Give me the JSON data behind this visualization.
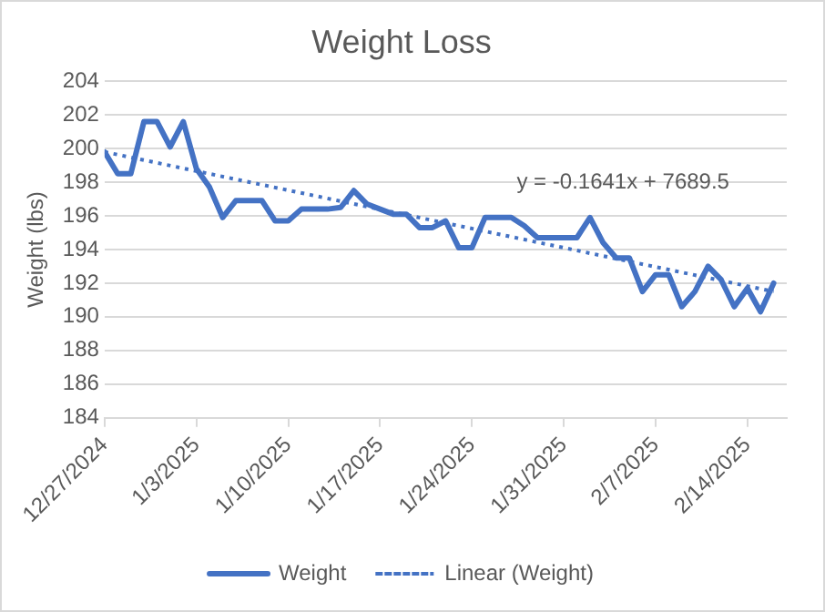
{
  "chart_data": {
    "type": "line",
    "title": "Weight Loss",
    "ylabel": "Weight (lbs)",
    "x": [
      "2024-12-27",
      "2024-12-28",
      "2024-12-29",
      "2024-12-30",
      "2024-12-31",
      "2025-01-01",
      "2025-01-02",
      "2025-01-03",
      "2025-01-04",
      "2025-01-05",
      "2025-01-06",
      "2025-01-07",
      "2025-01-08",
      "2025-01-09",
      "2025-01-10",
      "2025-01-11",
      "2025-01-12",
      "2025-01-13",
      "2025-01-14",
      "2025-01-15",
      "2025-01-16",
      "2025-01-17",
      "2025-01-18",
      "2025-01-19",
      "2025-01-20",
      "2025-01-21",
      "2025-01-22",
      "2025-01-23",
      "2025-01-24",
      "2025-01-25",
      "2025-01-26",
      "2025-01-27",
      "2025-01-28",
      "2025-01-29",
      "2025-01-30",
      "2025-01-31",
      "2025-02-01",
      "2025-02-02",
      "2025-02-03",
      "2025-02-04",
      "2025-02-05",
      "2025-02-06",
      "2025-02-07",
      "2025-02-08",
      "2025-02-09",
      "2025-02-10",
      "2025-02-11",
      "2025-02-12",
      "2025-02-13",
      "2025-02-14",
      "2025-02-15",
      "2025-02-16"
    ],
    "series": [
      {
        "name": "Weight",
        "color": "#4472c4",
        "line_style": "solid",
        "values": [
          199.8,
          198.5,
          198.5,
          201.6,
          201.6,
          200.1,
          201.6,
          198.8,
          197.7,
          195.9,
          196.9,
          196.9,
          196.9,
          195.7,
          195.7,
          196.4,
          196.4,
          196.4,
          196.5,
          197.5,
          196.7,
          196.4,
          196.1,
          196.1,
          195.3,
          195.3,
          195.7,
          194.1,
          194.1,
          195.9,
          195.9,
          195.9,
          195.4,
          194.7,
          194.7,
          194.7,
          194.7,
          195.9,
          194.4,
          193.5,
          193.5,
          191.5,
          192.5,
          192.5,
          190.6,
          191.5,
          193.0,
          192.2,
          190.6,
          191.7,
          190.3,
          192.0
        ]
      },
      {
        "name": "Linear (Weight)",
        "color": "#4472c4",
        "line_style": "dotted",
        "x": [
          "2024-12-27",
          "2025-02-16"
        ],
        "values": [
          199.8,
          191.5
        ]
      }
    ],
    "xlim": [
      "2024-12-27",
      "2025-02-17"
    ],
    "xticks": [
      {
        "value": "2024-12-27",
        "label": "12/27/2024"
      },
      {
        "value": "2025-01-03",
        "label": "1/3/2025"
      },
      {
        "value": "2025-01-10",
        "label": "1/10/2025"
      },
      {
        "value": "2025-01-17",
        "label": "1/17/2025"
      },
      {
        "value": "2025-01-24",
        "label": "1/24/2025"
      },
      {
        "value": "2025-01-31",
        "label": "1/31/2025"
      },
      {
        "value": "2025-02-07",
        "label": "2/7/2025"
      },
      {
        "value": "2025-02-14",
        "label": "2/14/2025"
      }
    ],
    "ylim": [
      184,
      204
    ],
    "yticks": [
      184,
      186,
      188,
      190,
      192,
      194,
      196,
      198,
      200,
      202,
      204
    ],
    "grid": "y",
    "legend": "bottom",
    "marker": "none",
    "annotations": [
      "y = -0.1641x + 7689.5"
    ]
  }
}
